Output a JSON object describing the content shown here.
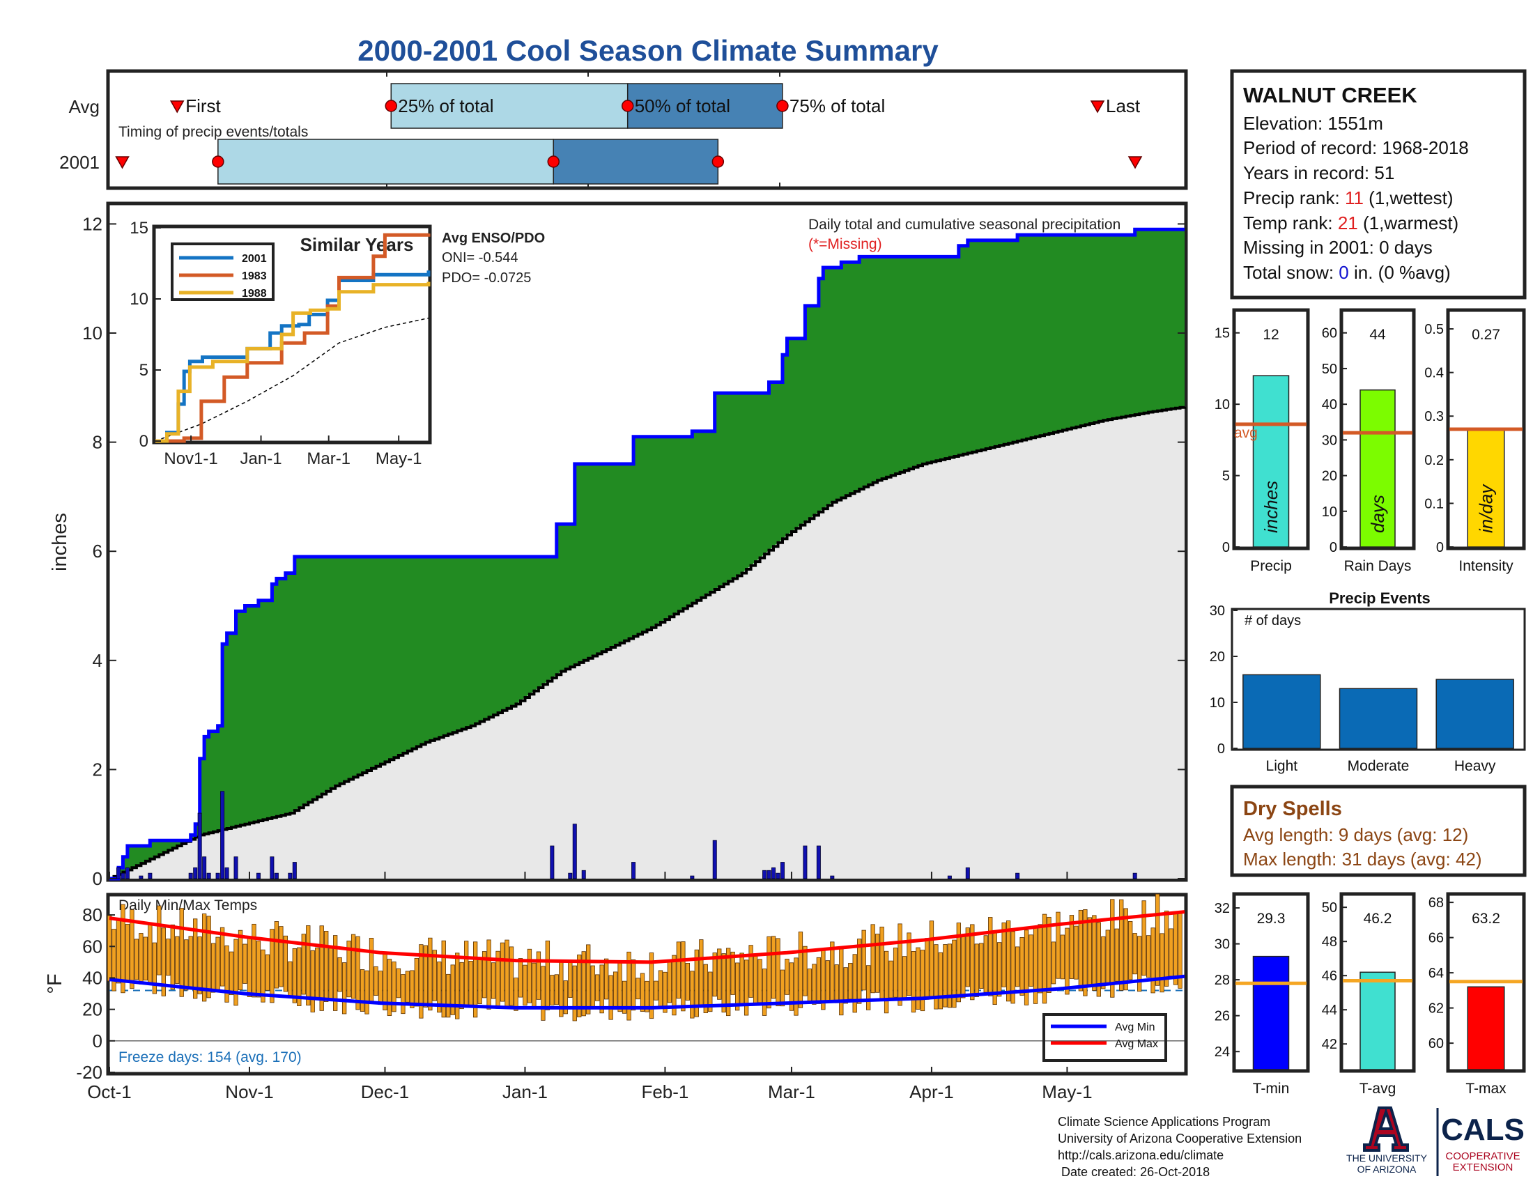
{
  "title": "2000-2001 Cool Season Climate Summary",
  "timing": {
    "label": "Timing of precip events/totals",
    "rows": [
      {
        "name": "Avg",
        "first": 0.063,
        "q25": 0.262,
        "q50": 0.482,
        "q75": 0.626,
        "last": 0.919,
        "labels": {
          "first": "First",
          "q25": "25% of total",
          "q50": "50% of total",
          "q75": "75% of total",
          "last": "Last"
        }
      },
      {
        "name": "2001",
        "first": 0.012,
        "q25": 0.101,
        "q50": 0.413,
        "q75": 0.566,
        "last": 0.954
      }
    ]
  },
  "main_chart": {
    "ylabel": "inches",
    "annotation": "Daily total and cumulative seasonal precipitation",
    "missing_note": "(*=Missing)",
    "y_ticks": [
      "0",
      "2",
      "4",
      "6",
      "8",
      "10",
      "12"
    ],
    "ylim": [
      0,
      12.35
    ],
    "xlim": [
      0,
      238
    ],
    "cumulative_2001": [
      [
        0,
        0
      ],
      [
        2,
        0.2
      ],
      [
        3,
        0.4
      ],
      [
        4,
        0.6
      ],
      [
        8,
        0.6
      ],
      [
        9,
        0.7
      ],
      [
        17,
        0.7
      ],
      [
        18,
        0.8
      ],
      [
        19,
        1.0
      ],
      [
        20,
        2.2
      ],
      [
        21,
        2.6
      ],
      [
        22,
        2.7
      ],
      [
        24,
        2.8
      ],
      [
        25,
        4.3
      ],
      [
        26,
        4.5
      ],
      [
        27,
        4.5
      ],
      [
        28,
        4.9
      ],
      [
        30,
        5.0
      ],
      [
        32,
        5.0
      ],
      [
        33,
        5.1
      ],
      [
        34,
        5.1
      ],
      [
        36,
        5.4
      ],
      [
        37,
        5.5
      ],
      [
        39,
        5.6
      ],
      [
        40,
        5.6
      ],
      [
        41,
        5.9
      ],
      [
        70,
        5.9
      ],
      [
        98,
        5.9
      ],
      [
        99,
        6.5
      ],
      [
        102,
        6.5
      ],
      [
        103,
        7.6
      ],
      [
        115,
        7.6
      ],
      [
        116,
        8.1
      ],
      [
        128,
        8.1
      ],
      [
        129,
        8.2
      ],
      [
        133,
        8.2
      ],
      [
        134,
        8.9
      ],
      [
        145,
        8.9
      ],
      [
        146,
        9.1
      ],
      [
        148,
        9.1
      ],
      [
        149,
        9.6
      ],
      [
        150,
        9.9
      ],
      [
        153,
        9.9
      ],
      [
        154,
        10.5
      ],
      [
        156,
        10.5
      ],
      [
        157,
        11.0
      ],
      [
        158,
        11.2
      ],
      [
        162,
        11.3
      ],
      [
        166,
        11.4
      ],
      [
        187,
        11.4
      ],
      [
        188,
        11.6
      ],
      [
        190,
        11.7
      ],
      [
        200,
        11.7
      ],
      [
        201,
        11.8
      ],
      [
        226,
        11.8
      ],
      [
        227,
        11.9
      ],
      [
        238,
        11.9
      ]
    ],
    "cumulative_avg": [
      [
        0,
        0
      ],
      [
        10,
        0.4
      ],
      [
        20,
        0.8
      ],
      [
        30,
        1.0
      ],
      [
        40,
        1.2
      ],
      [
        50,
        1.7
      ],
      [
        60,
        2.1
      ],
      [
        70,
        2.5
      ],
      [
        80,
        2.8
      ],
      [
        90,
        3.2
      ],
      [
        100,
        3.8
      ],
      [
        110,
        4.2
      ],
      [
        120,
        4.6
      ],
      [
        130,
        5.1
      ],
      [
        140,
        5.6
      ],
      [
        150,
        6.3
      ],
      [
        160,
        6.9
      ],
      [
        170,
        7.3
      ],
      [
        180,
        7.6
      ],
      [
        190,
        7.8
      ],
      [
        200,
        8.0
      ],
      [
        210,
        8.2
      ],
      [
        220,
        8.4
      ],
      [
        230,
        8.55
      ],
      [
        238,
        8.65
      ]
    ],
    "daily_precip": [
      [
        2,
        0.2
      ],
      [
        3,
        0.1
      ],
      [
        4,
        0.2
      ],
      [
        7,
        0.05
      ],
      [
        9,
        0.1
      ],
      [
        18,
        0.1
      ],
      [
        19,
        0.2
      ],
      [
        20,
        1.2
      ],
      [
        21,
        0.4
      ],
      [
        22,
        0.1
      ],
      [
        24,
        0.1
      ],
      [
        25,
        1.6
      ],
      [
        26,
        0.2
      ],
      [
        28,
        0.4
      ],
      [
        33,
        0.1
      ],
      [
        36,
        0.4
      ],
      [
        37,
        0.1
      ],
      [
        40,
        0.1
      ],
      [
        41,
        0.3
      ],
      [
        98,
        0.6
      ],
      [
        102,
        0.1
      ],
      [
        103,
        1.0
      ],
      [
        105,
        0.15
      ],
      [
        116,
        0.3
      ],
      [
        129,
        0.05
      ],
      [
        134,
        0.7
      ],
      [
        145,
        0.15
      ],
      [
        146,
        0.15
      ],
      [
        147,
        0.2
      ],
      [
        148,
        0.1
      ],
      [
        149,
        0.3
      ],
      [
        154,
        0.6
      ],
      [
        157,
        0.6
      ],
      [
        160,
        0.05
      ],
      [
        186,
        0.05
      ],
      [
        190,
        0.2
      ],
      [
        201,
        0.1
      ],
      [
        227,
        0.1
      ]
    ]
  },
  "similar_years": {
    "title": "Similar Years",
    "legend": [
      "2001",
      "1983",
      "1988"
    ],
    "colors": [
      "#1474c4",
      "#d35a26",
      "#e8b227"
    ],
    "y_ticks": [
      "0",
      "5",
      "10",
      "15"
    ],
    "x_ticks": [
      "Nov1-1",
      "Jan-1",
      "Mar-1",
      "May-1"
    ],
    "series": {
      "2001": [
        [
          0,
          0
        ],
        [
          10,
          0.6
        ],
        [
          20,
          2.6
        ],
        [
          25,
          4.9
        ],
        [
          30,
          5.6
        ],
        [
          41,
          5.9
        ],
        [
          70,
          5.9
        ],
        [
          80,
          6.5
        ],
        [
          100,
          7.6
        ],
        [
          110,
          8.1
        ],
        [
          125,
          8.2
        ],
        [
          134,
          8.9
        ],
        [
          150,
          9.9
        ],
        [
          160,
          11.3
        ],
        [
          190,
          11.7
        ],
        [
          238,
          12.0
        ]
      ],
      "1983": [
        [
          0,
          0
        ],
        [
          25,
          0.2
        ],
        [
          40,
          2.8
        ],
        [
          60,
          4.5
        ],
        [
          80,
          5.5
        ],
        [
          110,
          6.9
        ],
        [
          130,
          7.6
        ],
        [
          150,
          9.5
        ],
        [
          160,
          11.5
        ],
        [
          190,
          13.0
        ],
        [
          200,
          14.5
        ],
        [
          238,
          14.6
        ]
      ],
      "1988": [
        [
          0,
          0
        ],
        [
          10,
          0.5
        ],
        [
          20,
          3.5
        ],
        [
          30,
          5.2
        ],
        [
          50,
          5.6
        ],
        [
          80,
          6.5
        ],
        [
          110,
          7.5
        ],
        [
          120,
          9.0
        ],
        [
          135,
          9.2
        ],
        [
          150,
          9.3
        ],
        [
          160,
          10.5
        ],
        [
          190,
          11.0
        ],
        [
          238,
          11.2
        ]
      ],
      "avg": [
        [
          0,
          0
        ],
        [
          40,
          1.2
        ],
        [
          80,
          2.8
        ],
        [
          120,
          4.6
        ],
        [
          160,
          6.9
        ],
        [
          200,
          8.0
        ],
        [
          238,
          8.65
        ]
      ]
    },
    "ylim": [
      0,
      15
    ]
  },
  "enso": {
    "title": "Avg ENSO/PDO",
    "oni": "ONI= -0.544",
    "pdo": "PDO= -0.0725"
  },
  "temps": {
    "title": "Daily Min/Max Temps",
    "ylabel": "°F",
    "y_ticks": [
      "-20",
      "0",
      "20",
      "40",
      "60",
      "80"
    ],
    "ylim": [
      -20,
      92
    ],
    "freeze_line": 32,
    "freeze_days": "Freeze days: 154 (avg. 170)",
    "legend": [
      "Avg Min",
      "Avg Max"
    ],
    "avg_min": [
      [
        0,
        39
      ],
      [
        30,
        30
      ],
      [
        60,
        24
      ],
      [
        90,
        21
      ],
      [
        120,
        21
      ],
      [
        150,
        24
      ],
      [
        180,
        27
      ],
      [
        210,
        33
      ],
      [
        238,
        41
      ]
    ],
    "avg_max": [
      [
        0,
        78
      ],
      [
        30,
        66
      ],
      [
        60,
        56
      ],
      [
        90,
        51
      ],
      [
        120,
        50
      ],
      [
        150,
        56
      ],
      [
        180,
        64
      ],
      [
        210,
        74
      ],
      [
        238,
        82
      ]
    ],
    "x_ticks": [
      "Oct-1",
      "Nov-1",
      "Dec-1",
      "Jan-1",
      "Feb-1",
      "Mar-1",
      "Apr-1",
      "May-1"
    ],
    "x_tick_days": [
      0,
      31,
      61,
      92,
      123,
      151,
      182,
      212
    ]
  },
  "station": {
    "name": "WALNUT CREEK",
    "elevation": "Elevation: 1551m",
    "period": "Period of record: 1968-2018",
    "years": "Years in record: 51",
    "precip_rank_label": "Precip rank: ",
    "precip_rank_value": "11",
    "precip_rank_note": " (1,wettest)",
    "temp_rank_label": "Temp rank: ",
    "temp_rank_value": "21",
    "temp_rank_note": " (1,warmest)",
    "missing": "Missing in 2001: 0 days",
    "snow_label": "Total snow: ",
    "snow_value": "0",
    "snow_note": " in. (0 %avg)"
  },
  "small_bars": [
    {
      "label": "Precip",
      "value_text": "12",
      "value": 12,
      "avg": 8.6,
      "ylim": [
        0,
        16.5
      ],
      "ticks": [
        "0",
        "5",
        "10",
        "15"
      ],
      "unit": "inches",
      "color": "#40e0d0",
      "avg_label": "avg"
    },
    {
      "label": "Rain Days",
      "value_text": "44",
      "value": 44,
      "avg": 32,
      "ylim": [
        0,
        66
      ],
      "ticks": [
        "0",
        "10",
        "20",
        "30",
        "40",
        "50",
        "60"
      ],
      "unit": "days",
      "color": "#7cfc00"
    },
    {
      "label": "Intensity",
      "value_text": "0.27",
      "value": 0.27,
      "avg": 0.27,
      "ylim": [
        0,
        0.54
      ],
      "ticks": [
        "0",
        "0.1",
        "0.2",
        "0.3",
        "0.4",
        "0.5"
      ],
      "unit": "in/day",
      "color": "#ffd700"
    }
  ],
  "precip_events": {
    "title": "Precip Events",
    "note": "# of days",
    "categories": [
      "Light",
      "Moderate",
      "Heavy"
    ],
    "values": [
      16,
      13,
      15
    ],
    "ticks": [
      "0",
      "10",
      "20",
      "30"
    ],
    "ylim": [
      0,
      30
    ]
  },
  "dry_spells": {
    "title": "Dry Spells",
    "avg": "Avg length: 9 days (avg: 12)",
    "max": "Max length: 31 days (avg: 42)"
  },
  "temp_bars": [
    {
      "label": "T-min",
      "value_text": "29.3",
      "value": 29.3,
      "avg": 27.8,
      "ylim": [
        23,
        32.7
      ],
      "ticks": [
        "24",
        "26",
        "28",
        "30",
        "32"
      ],
      "color": "#0000ff"
    },
    {
      "label": "T-avg",
      "value_text": "46.2",
      "value": 46.2,
      "avg": 45.7,
      "ylim": [
        40.5,
        50.7
      ],
      "ticks": [
        "42",
        "44",
        "46",
        "48",
        "50"
      ],
      "color": "#40e0d0"
    },
    {
      "label": "T-max",
      "value_text": "63.2",
      "value": 63.2,
      "avg": 63.5,
      "ylim": [
        58.5,
        68.4
      ],
      "ticks": [
        "60",
        "62",
        "64",
        "66",
        "68"
      ],
      "color": "#ff0000"
    }
  ],
  "footer": {
    "lines": [
      "Climate Science Applications Program",
      "University of Arizona Cooperative Extension",
      "http://cals.arizona.edu/climate",
      " Date created: 26-Oct-2018"
    ],
    "ua_logo_text": [
      "THE UNIVERSITY",
      "OF ARIZONA"
    ],
    "cals_logo_text": [
      "CALS",
      "COOPERATIVE",
      "EXTENSION"
    ]
  }
}
